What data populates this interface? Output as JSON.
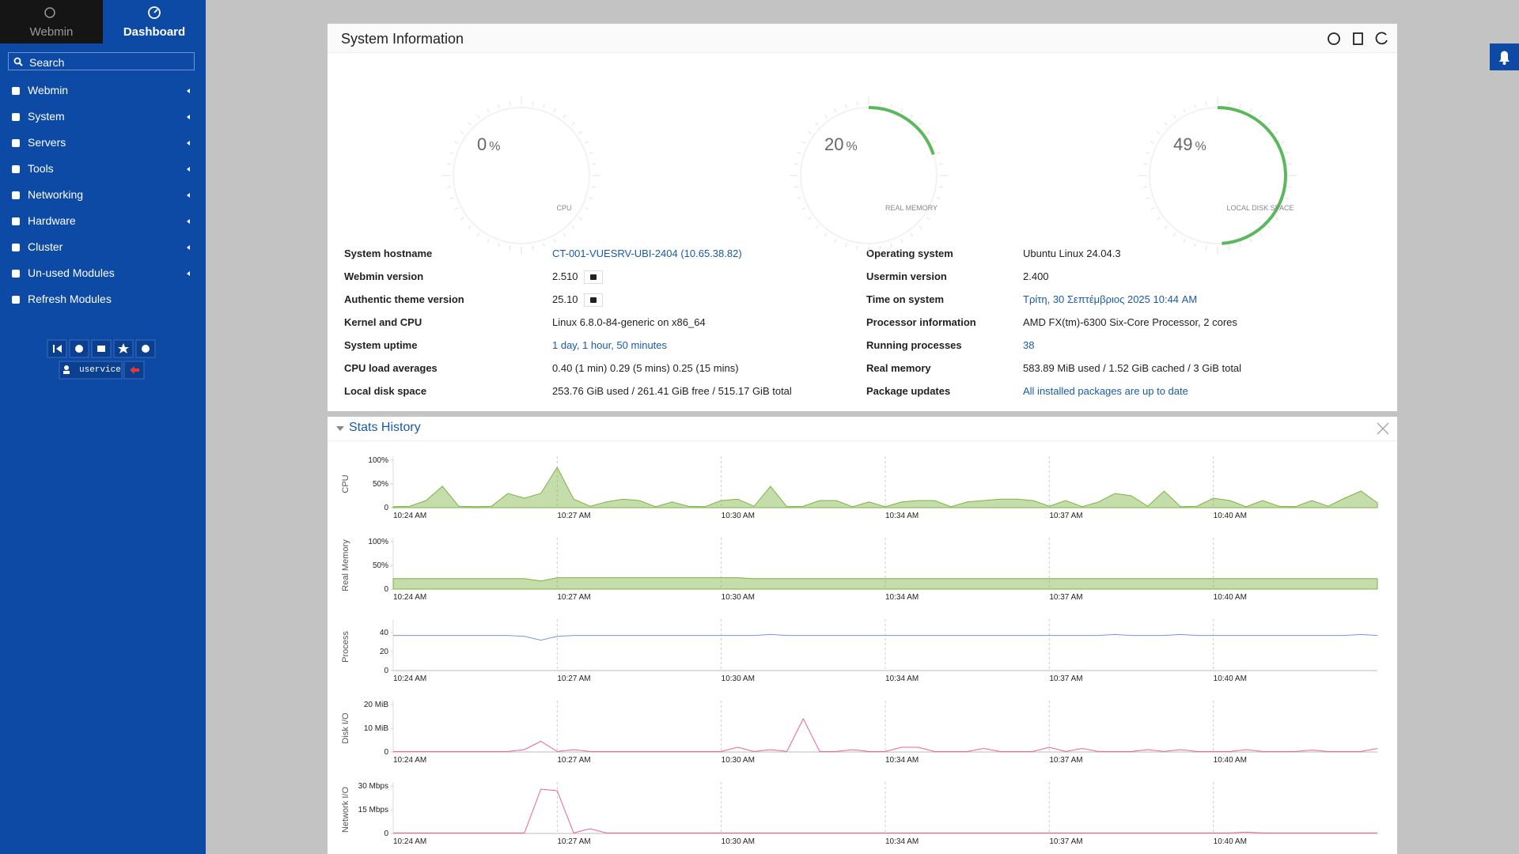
{
  "nav": {
    "tabs": [
      "Webmin",
      "Dashboard"
    ],
    "search": "Search",
    "items": [
      "Webmin",
      "System",
      "Servers",
      "Tools",
      "Networking",
      "Hardware",
      "Cluster",
      "Un-used Modules",
      "Refresh Modules"
    ],
    "user": "uservice"
  },
  "sysinfo": {
    "title": "System Information",
    "gauges": [
      {
        "value": 0,
        "unit": "%",
        "label": "CPU"
      },
      {
        "value": 20,
        "unit": "%",
        "label": "REAL MEMORY"
      },
      {
        "value": 49,
        "unit": "%",
        "label": "LOCAL DISK SPACE"
      }
    ],
    "color": "#5cb85c",
    "left": [
      {
        "label": "System hostname",
        "value": "CT-001-VUESRV-UBI-2404 (10.65.38.82)",
        "link": true
      },
      {
        "label": "Webmin version",
        "value": "2.510",
        "link": false,
        "badge": true
      },
      {
        "label": "Authentic theme version",
        "value": "25.10",
        "link": false,
        "badge": true
      },
      {
        "label": "Kernel and CPU",
        "value": "Linux 6.8.0-84-generic on x86_64",
        "link": false
      },
      {
        "label": "System uptime",
        "value": "1 day, 1 hour, 50 minutes",
        "link": true
      },
      {
        "label": "CPU load averages",
        "value": "0.40 (1 min) 0.29 (5 mins) 0.25 (15 mins)",
        "link": false
      },
      {
        "label": "Local disk space",
        "value": "253.76 GiB used / 261.41 GiB free / 515.17 GiB total",
        "link": false
      }
    ],
    "right": [
      {
        "label": "Operating system",
        "value": "Ubuntu Linux 24.04.3",
        "link": false
      },
      {
        "label": "Usermin version",
        "value": "2.400",
        "link": false
      },
      {
        "label": "Time on system",
        "value": "Τρίτη, 30 Σεπτέμβριος 2025 10:44 AM",
        "link": true
      },
      {
        "label": "Processor information",
        "value": "AMD FX(tm)-6300 Six-Core Processor, 2 cores",
        "link": false
      },
      {
        "label": "Running processes",
        "value": "38",
        "link": true
      },
      {
        "label": "Real memory",
        "value": "583.89 MiB used / 1.52 GiB cached / 3 GiB total",
        "link": false
      },
      {
        "label": "Package updates",
        "value": "All installed packages are up to date",
        "link": true
      }
    ]
  },
  "stats": {
    "title": "Stats History",
    "xlim": [
      0,
      6
    ],
    "xticks": [
      {
        "value": 0,
        "label": "10:24 AM"
      },
      {
        "value": 1,
        "label": "10:27 AM"
      },
      {
        "value": 2,
        "label": "10:30 AM"
      },
      {
        "value": 3,
        "label": "10:34 AM"
      },
      {
        "value": 4,
        "label": "10:37 AM"
      },
      {
        "value": 5,
        "label": "10:40 AM"
      }
    ],
    "charts": [
      {
        "type": "area",
        "ylabel": "CPU",
        "color": "#7cb342",
        "ylim": [
          0,
          100
        ],
        "yticks": [
          0,
          {
            "value": 50,
            "label": "50%"
          },
          {
            "value": 100,
            "label": "100%"
          }
        ],
        "values": [
          2,
          3,
          15,
          45,
          3,
          2,
          3,
          30,
          20,
          30,
          85,
          18,
          3,
          12,
          18,
          15,
          2,
          12,
          3,
          2,
          15,
          18,
          3,
          45,
          2,
          3,
          15,
          15,
          2,
          12,
          2,
          12,
          15,
          15,
          2,
          12,
          15,
          18,
          18,
          15,
          3,
          15,
          2,
          12,
          30,
          25,
          3,
          35,
          2,
          3,
          20,
          15,
          2,
          15,
          3,
          2,
          15,
          3,
          20,
          35,
          10
        ]
      },
      {
        "type": "area",
        "ylabel": "Real Memory",
        "color": "#7cb342",
        "ylim": [
          0,
          100
        ],
        "yticks": [
          0,
          {
            "value": 50,
            "label": "50%"
          },
          {
            "value": 100,
            "label": "100%"
          }
        ],
        "values": [
          22,
          22,
          22,
          22,
          22,
          22,
          22,
          22,
          22,
          17,
          24,
          24,
          24,
          24,
          24,
          24,
          24,
          24,
          24,
          24,
          24,
          24,
          22,
          22,
          22,
          22,
          22,
          22,
          22,
          22,
          22,
          22,
          22,
          22,
          22,
          22,
          22,
          22,
          22,
          22,
          22,
          22,
          22,
          22,
          22,
          22,
          22,
          22,
          22,
          22,
          22,
          22,
          22,
          22,
          22,
          22,
          22,
          22,
          22,
          22,
          22
        ]
      },
      {
        "type": "line",
        "ylabel": "Process",
        "color": "#6f9ad8",
        "ylim": [
          0,
          50
        ],
        "yticks": [
          0,
          20,
          40
        ],
        "values": [
          37,
          37,
          37,
          37,
          37,
          37,
          37,
          37,
          36,
          32,
          36,
          37,
          37,
          37,
          37,
          37,
          37,
          37,
          37,
          37,
          37,
          37,
          37,
          38,
          37,
          37,
          37,
          37,
          37,
          37,
          37,
          37,
          37,
          37,
          37,
          37,
          37,
          37,
          37,
          37,
          37,
          37,
          37,
          37,
          38,
          37,
          37,
          37,
          38,
          37,
          37,
          37,
          37,
          37,
          37,
          37,
          37,
          37,
          37,
          38,
          37
        ]
      },
      {
        "type": "line",
        "ylabel": "Disk I/O",
        "color": "#f06292",
        "ylim": [
          0,
          20
        ],
        "yticks": [
          0,
          {
            "value": 10,
            "label": "10 MiB"
          },
          {
            "value": 20,
            "label": "20 MiB"
          }
        ],
        "values": [
          0.2,
          0.2,
          0.2,
          0.2,
          0.2,
          0.2,
          0.2,
          0.2,
          1,
          4.5,
          0.2,
          1,
          0.2,
          0.2,
          0.2,
          0.2,
          0.2,
          0.2,
          0.2,
          0.2,
          0.2,
          2,
          0.2,
          1,
          0.2,
          14,
          0.2,
          0.2,
          1,
          0.2,
          0.2,
          2,
          2,
          0.2,
          0.2,
          0.2,
          1.5,
          0.2,
          0.2,
          0.2,
          2,
          0.2,
          1.5,
          0.2,
          0.2,
          0.2,
          1,
          0.2,
          1,
          0.2,
          0.2,
          0.2,
          1,
          0.2,
          0.2,
          0.2,
          0.8,
          0.2,
          0.2,
          0.2,
          1.5
        ]
      },
      {
        "type": "line",
        "ylabel": "Network I/O",
        "color": "#f06292",
        "ylim": [
          0,
          30
        ],
        "yticks": [
          0,
          {
            "value": 15,
            "label": "15 Mbps"
          },
          {
            "value": 30,
            "label": "30 Mbps"
          }
        ],
        "values": [
          0.3,
          0.3,
          0.3,
          0.3,
          0.3,
          0.3,
          0.3,
          0.3,
          0.3,
          28,
          27,
          0.3,
          3,
          0.3,
          0.3,
          0.3,
          0.3,
          0.3,
          0.3,
          0.3,
          0.3,
          0.3,
          0.3,
          0.3,
          0.3,
          0.3,
          0.3,
          0.3,
          0.3,
          0.3,
          0.3,
          0.3,
          0.3,
          0.3,
          0.3,
          0.3,
          0.3,
          0.3,
          0.3,
          0.3,
          0.3,
          0.3,
          0.3,
          0.3,
          0.3,
          0.3,
          0.3,
          0.3,
          0.3,
          0.3,
          0.3,
          0.3,
          0.8,
          0.3,
          0.3,
          0.3,
          0.3,
          0.3,
          0.3,
          0.3,
          0.3
        ]
      }
    ]
  }
}
